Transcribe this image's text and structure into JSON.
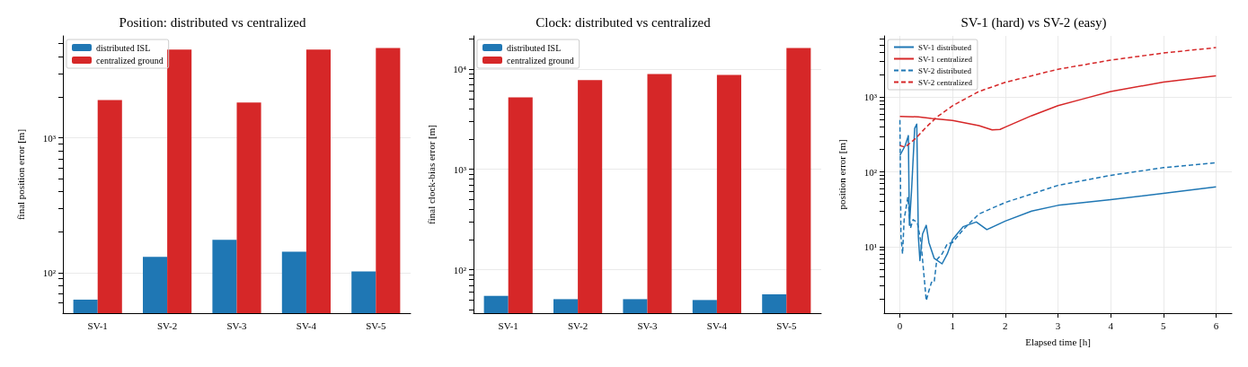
{
  "chart_data": [
    {
      "type": "bar",
      "title": "Position: distributed vs centralized",
      "ylabel": "final position error [m]",
      "categories": [
        "SV-1",
        "SV-2",
        "SV-3",
        "SV-4",
        "SV-5"
      ],
      "series": [
        {
          "name": "distributed ISL",
          "color": "#1f77b4",
          "values": [
            63,
            131,
            175,
            143,
            102
          ]
        },
        {
          "name": "centralized ground",
          "color": "#d62728",
          "values": [
            1905,
            4510,
            1824,
            4510,
            4640
          ]
        }
      ],
      "log": "y",
      "ylim": [
        50,
        5700
      ],
      "yticks": [
        {
          "value": 60,
          "label": null
        },
        {
          "value": 70,
          "label": null
        },
        {
          "value": 80,
          "label": null
        },
        {
          "value": 90,
          "label": null
        },
        {
          "value": 100,
          "label": "10²"
        },
        {
          "value": 200,
          "label": null
        },
        {
          "value": 300,
          "label": null
        },
        {
          "value": 400,
          "label": null
        },
        {
          "value": 500,
          "label": null
        },
        {
          "value": 600,
          "label": null
        },
        {
          "value": 700,
          "label": null
        },
        {
          "value": 800,
          "label": null
        },
        {
          "value": 900,
          "label": null
        },
        {
          "value": 1000,
          "label": "10³"
        },
        {
          "value": 2000,
          "label": null
        },
        {
          "value": 3000,
          "label": null
        },
        {
          "value": 4000,
          "label": null
        },
        {
          "value": 5000,
          "label": null
        }
      ],
      "grid": "y",
      "legend": "top left"
    },
    {
      "type": "bar",
      "title": "Clock: distributed vs centralized",
      "ylabel": "final clock-bias error [m]",
      "categories": [
        "SV-1",
        "SV-2",
        "SV-3",
        "SV-4",
        "SV-5"
      ],
      "series": [
        {
          "name": "distributed ISL",
          "color": "#1f77b4",
          "values": [
            55,
            51,
            51,
            50,
            57
          ]
        },
        {
          "name": "centralized ground",
          "color": "#d62728",
          "values": [
            5210,
            7730,
            8870,
            8700,
            16100
          ]
        }
      ],
      "log": "y",
      "ylim": [
        37,
        21300
      ],
      "yticks": [
        {
          "value": 40,
          "label": null
        },
        {
          "value": 50,
          "label": null
        },
        {
          "value": 60,
          "label": null
        },
        {
          "value": 70,
          "label": null
        },
        {
          "value": 80,
          "label": null
        },
        {
          "value": 90,
          "label": null
        },
        {
          "value": 100,
          "label": "10²"
        },
        {
          "value": 200,
          "label": null
        },
        {
          "value": 300,
          "label": null
        },
        {
          "value": 400,
          "label": null
        },
        {
          "value": 500,
          "label": null
        },
        {
          "value": 600,
          "label": null
        },
        {
          "value": 700,
          "label": null
        },
        {
          "value": 800,
          "label": null
        },
        {
          "value": 900,
          "label": null
        },
        {
          "value": 1000,
          "label": "10³"
        },
        {
          "value": 2000,
          "label": null
        },
        {
          "value": 3000,
          "label": null
        },
        {
          "value": 4000,
          "label": null
        },
        {
          "value": 5000,
          "label": null
        },
        {
          "value": 6000,
          "label": null
        },
        {
          "value": 7000,
          "label": null
        },
        {
          "value": 8000,
          "label": null
        },
        {
          "value": 9000,
          "label": null
        },
        {
          "value": 10000,
          "label": "10⁴"
        },
        {
          "value": 20000,
          "label": null
        }
      ],
      "grid": "y",
      "legend": "top left"
    },
    {
      "type": "line",
      "title": "SV-1 (hard) vs SV-2 (easy)",
      "xlabel": "Elapsed time [h]",
      "ylabel": "position error [m]",
      "series": [
        {
          "name": "SV-1 distributed",
          "color": "#1f77b4",
          "line_style": "solid",
          "x": [
            0,
            0.1,
            0.16,
            0.18,
            0.22,
            0.28,
            0.32,
            0.35,
            0.38,
            0.43,
            0.5,
            0.55,
            0.65,
            0.8,
            0.9,
            1,
            1.2,
            1.45,
            1.65,
            2,
            2.5,
            3,
            4,
            5,
            6
          ],
          "values": [
            166,
            225,
            306,
            19.3,
            55,
            381,
            435,
            13.6,
            6.5,
            14.8,
            19.3,
            11.4,
            7,
            5.9,
            8,
            12.5,
            18.5,
            21.4,
            16.9,
            22,
            29.9,
            35.7,
            42.5,
            51.5,
            63
          ]
        },
        {
          "name": "SV-1 centralized",
          "color": "#d62728",
          "line_style": "solid",
          "x": [
            0,
            0.35,
            0.6,
            1,
            1.5,
            1.75,
            1.9,
            2,
            2.5,
            3,
            3.5,
            4,
            5,
            6
          ],
          "values": [
            551,
            545,
            518,
            487,
            416,
            365,
            370,
            398,
            565,
            769,
            957,
            1191,
            1592,
            1932
          ]
        },
        {
          "name": "SV-2 distributed",
          "color": "#1f77b4",
          "line_style": "dashed",
          "x": [
            0,
            0.02,
            0.05,
            0.08,
            0.15,
            0.2,
            0.25,
            0.33,
            0.4,
            0.5,
            0.55,
            0.6,
            0.65,
            0.7,
            0.8,
            0.9,
            1,
            1.2,
            1.5,
            2,
            3,
            4,
            5,
            6
          ],
          "values": [
            495,
            13.6,
            8,
            23,
            46,
            17.7,
            23,
            21,
            11.4,
            1.9,
            2.57,
            3.34,
            3.34,
            6.7,
            8,
            10.9,
            11.4,
            16.9,
            27.4,
            39,
            66,
            90,
            114,
            133
          ]
        },
        {
          "name": "SV-2 centralized",
          "color": "#d62728",
          "line_style": "dashed",
          "x": [
            0,
            0.1,
            0.3,
            0.5,
            0.7,
            1,
            1.5,
            2,
            3,
            4,
            5,
            6
          ],
          "values": [
            225,
            215,
            281,
            398,
            541,
            769,
            1191,
            1578,
            2363,
            3127,
            3893,
            4600
          ]
        }
      ],
      "log": "y",
      "xlim": [
        -0.3,
        6.3
      ],
      "xticks": [
        0,
        1,
        2,
        3,
        4,
        5,
        6
      ],
      "ylim": [
        1.29,
        6600
      ],
      "yticks": [
        {
          "value": 2,
          "label": null
        },
        {
          "value": 3,
          "label": null
        },
        {
          "value": 4,
          "label": null
        },
        {
          "value": 5,
          "label": null
        },
        {
          "value": 6,
          "label": null
        },
        {
          "value": 7,
          "label": null
        },
        {
          "value": 8,
          "label": null
        },
        {
          "value": 9,
          "label": null
        },
        {
          "value": 10,
          "label": "10¹"
        },
        {
          "value": 20,
          "label": null
        },
        {
          "value": 30,
          "label": null
        },
        {
          "value": 40,
          "label": null
        },
        {
          "value": 50,
          "label": null
        },
        {
          "value": 60,
          "label": null
        },
        {
          "value": 70,
          "label": null
        },
        {
          "value": 80,
          "label": null
        },
        {
          "value": 90,
          "label": null
        },
        {
          "value": 100,
          "label": "10²"
        },
        {
          "value": 200,
          "label": null
        },
        {
          "value": 300,
          "label": null
        },
        {
          "value": 400,
          "label": null
        },
        {
          "value": 500,
          "label": null
        },
        {
          "value": 600,
          "label": null
        },
        {
          "value": 700,
          "label": null
        },
        {
          "value": 800,
          "label": null
        },
        {
          "value": 900,
          "label": null
        },
        {
          "value": 1000,
          "label": "10³"
        },
        {
          "value": 2000,
          "label": null
        },
        {
          "value": 3000,
          "label": null
        },
        {
          "value": 4000,
          "label": null
        },
        {
          "value": 5000,
          "label": null
        },
        {
          "value": 6000,
          "label": null
        }
      ],
      "grid": true,
      "legend": "top left",
      "marker": "none"
    }
  ]
}
